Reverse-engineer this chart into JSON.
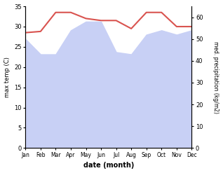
{
  "months": [
    "Jan",
    "Feb",
    "Mar",
    "Apr",
    "May",
    "Jun",
    "Jul",
    "Aug",
    "Sep",
    "Oct",
    "Nov",
    "Dec"
  ],
  "temp": [
    28.5,
    28.8,
    33.5,
    33.5,
    32.0,
    31.5,
    31.5,
    29.5,
    33.5,
    33.5,
    30.0,
    30.0
  ],
  "precip": [
    50.0,
    43.0,
    43.0,
    54.0,
    58.0,
    58.0,
    44.0,
    43.0,
    52.0,
    54.0,
    52.0,
    54.0
  ],
  "temp_color": "#d9534f",
  "precip_fill_color": "#c8d0f5",
  "xlabel": "date (month)",
  "ylabel_left": "max temp (C)",
  "ylabel_right": "med. precipitation (kg/m2)",
  "ylim_left": [
    0,
    35
  ],
  "ylim_right": [
    0,
    65
  ],
  "yticks_left": [
    0,
    5,
    10,
    15,
    20,
    25,
    30,
    35
  ],
  "yticks_right": [
    0,
    10,
    20,
    30,
    40,
    50,
    60
  ],
  "bg_color": "#ffffff"
}
